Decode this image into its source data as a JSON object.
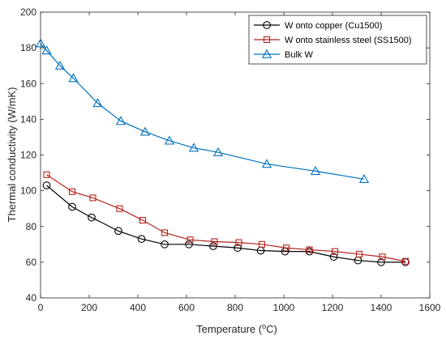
{
  "chart_data": {
    "type": "line",
    "title": "",
    "xlabel": "Temperature (",
    "xlabel_super": "o",
    "xlabel_suffix": "C)",
    "ylabel": "Thermal conductivity (W/mK)",
    "xlim": [
      0,
      1600
    ],
    "ylim": [
      40,
      200
    ],
    "xticks": [
      "0",
      "200",
      "400",
      "600",
      "800",
      "1000",
      "1200",
      "1400",
      "1600"
    ],
    "yticks": [
      "40",
      "60",
      "80",
      "100",
      "120",
      "140",
      "160",
      "180",
      "200"
    ],
    "legend_position": "top-right",
    "grid": false,
    "series": [
      {
        "name": "W onto copper (Cu1500)",
        "color": "#000000",
        "marker": "circle",
        "x": [
          25,
          130,
          210,
          320,
          415,
          510,
          610,
          710,
          810,
          905,
          1005,
          1105,
          1205,
          1305,
          1400,
          1500
        ],
        "y": [
          103,
          91,
          85,
          77.5,
          73,
          70,
          70,
          69,
          68,
          66.5,
          66,
          66,
          63,
          61,
          60,
          60
        ]
      },
      {
        "name": "W onto stainless steel (SS1500)",
        "color": "#b2221b",
        "marker": "square",
        "x": [
          25,
          130,
          215,
          325,
          420,
          510,
          615,
          715,
          815,
          910,
          1010,
          1105,
          1210,
          1310,
          1405,
          1500
        ],
        "y": [
          109,
          99.5,
          96,
          90,
          83.5,
          76.5,
          72.5,
          71.5,
          71,
          70,
          68,
          67,
          66,
          64.5,
          63,
          60.5
        ]
      },
      {
        "name": "Bulk W",
        "color": "#0072bd",
        "marker": "triangle",
        "x": [
          0,
          25,
          80,
          135,
          235,
          330,
          430,
          530,
          630,
          730,
          930,
          1130,
          1330
        ],
        "y": [
          182.5,
          178.5,
          170,
          163,
          149,
          139,
          133,
          128,
          124,
          121.5,
          115,
          111,
          106.5
        ]
      }
    ]
  }
}
